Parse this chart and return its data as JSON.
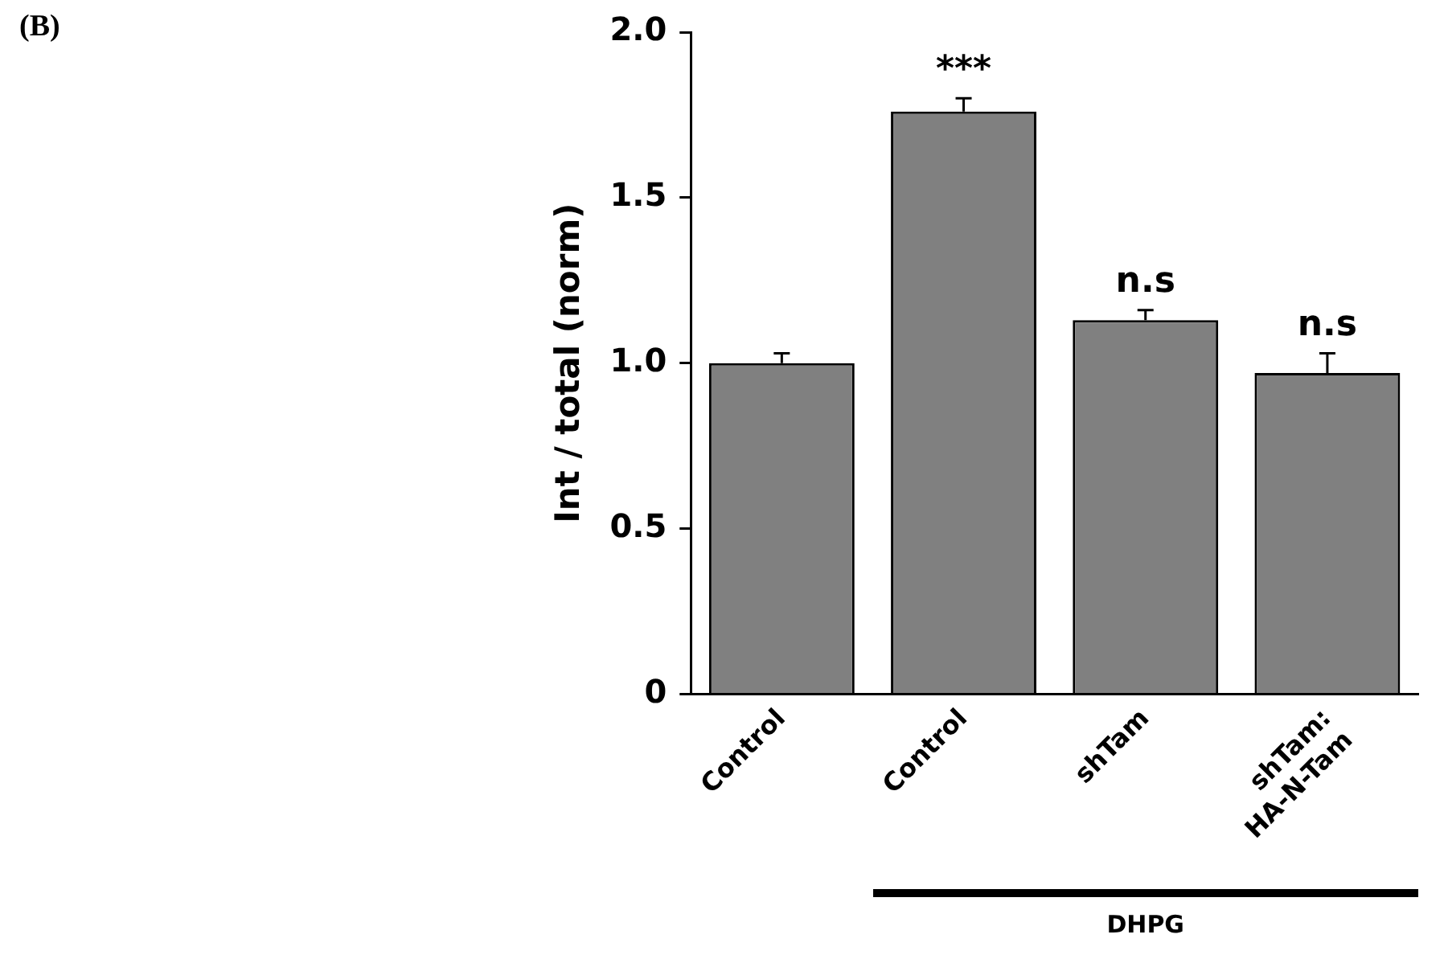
{
  "chart_data": {
    "type": "bar",
    "ylabel": "Int / total (norm)",
    "categories": [
      "Control",
      "Control",
      "shTam",
      "shTam:\nHA-N-Tam"
    ],
    "values": [
      1.0,
      1.76,
      1.13,
      0.97
    ],
    "errors": [
      0.03,
      0.04,
      0.03,
      0.06
    ],
    "color": "#808080",
    "ylim": [
      0,
      2
    ],
    "yticks": [
      0,
      0.5,
      {
        "value": 1,
        "label": "1.0"
      },
      1.5,
      {
        "value": 2,
        "label": "2.0"
      }
    ],
    "grid": false,
    "legend": false,
    "value_labels": [
      null,
      "***",
      "n.s",
      "n.s"
    ],
    "annotations": [
      "(B)",
      "DHPG"
    ]
  }
}
